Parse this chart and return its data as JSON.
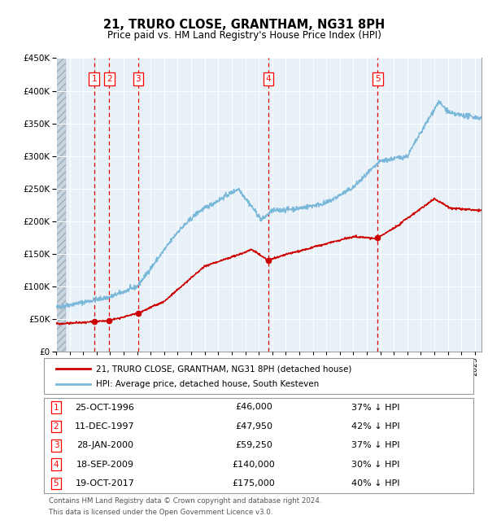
{
  "title": "21, TRURO CLOSE, GRANTHAM, NG31 8PH",
  "subtitle": "Price paid vs. HM Land Registry's House Price Index (HPI)",
  "footer1": "Contains HM Land Registry data © Crown copyright and database right 2024.",
  "footer2": "This data is licensed under the Open Government Licence v3.0.",
  "legend_red": "21, TRURO CLOSE, GRANTHAM, NG31 8PH (detached house)",
  "legend_blue": "HPI: Average price, detached house, South Kesteven",
  "sales": [
    {
      "num": 1,
      "date": "25-OCT-1996",
      "price": 46000,
      "pct": "37% ↓ HPI",
      "year": 1996.81
    },
    {
      "num": 2,
      "date": "11-DEC-1997",
      "price": 47950,
      "pct": "42% ↓ HPI",
      "year": 1997.94
    },
    {
      "num": 3,
      "date": "28-JAN-2000",
      "price": 59250,
      "pct": "37% ↓ HPI",
      "year": 2000.07
    },
    {
      "num": 4,
      "date": "18-SEP-2009",
      "price": 140000,
      "pct": "30% ↓ HPI",
      "year": 2009.71
    },
    {
      "num": 5,
      "date": "19-OCT-2017",
      "price": 175000,
      "pct": "40% ↓ HPI",
      "year": 2017.8
    }
  ],
  "hpi_color": "#7ab8d9",
  "red_color": "#cc0000",
  "plot_bg": "#e8f0f8",
  "vline_color": "#dd0000",
  "hatch_bg": "#d0d8e0",
  "ylim": [
    0,
    450000
  ],
  "xlim_start": 1994.0,
  "xlim_end": 2025.5,
  "yticks": [
    0,
    50000,
    100000,
    150000,
    200000,
    250000,
    300000,
    350000,
    400000,
    450000
  ]
}
